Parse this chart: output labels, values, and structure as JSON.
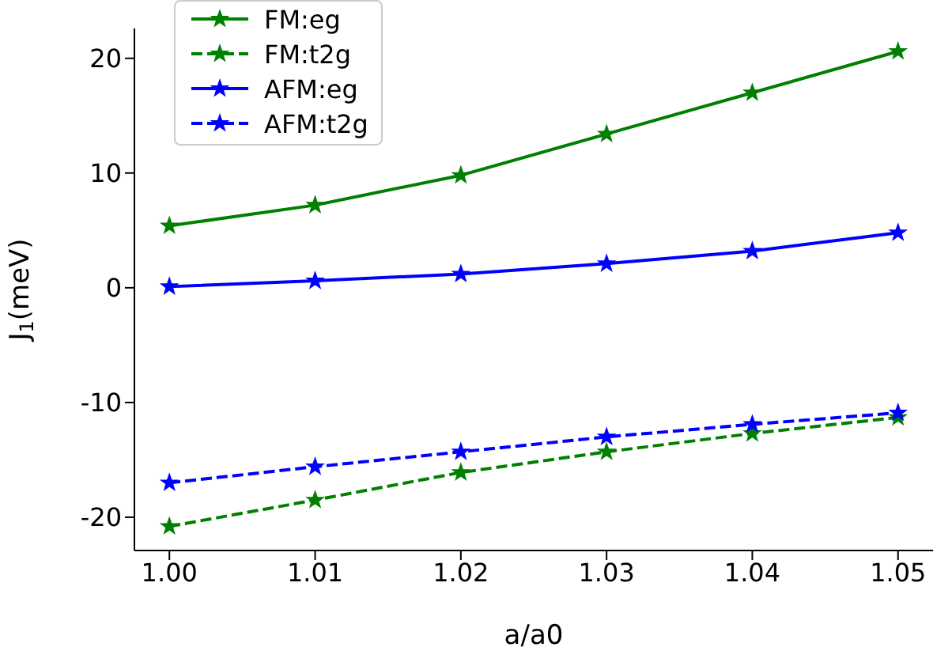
{
  "chart_data": {
    "type": "line",
    "xlabel": "a/a0",
    "ylabel": "J$_{1}$(meV)",
    "x": [
      1.0,
      1.01,
      1.02,
      1.03,
      1.04,
      1.05
    ],
    "series": [
      {
        "name": "FM:eg",
        "color": "#008000",
        "line_style": "solid",
        "values": [
          5.4,
          7.2,
          9.8,
          13.4,
          17.0,
          20.6
        ]
      },
      {
        "name": "FM:t2g",
        "color": "#008000",
        "line_style": "dashed",
        "values": [
          -20.8,
          -18.5,
          -16.1,
          -14.3,
          -12.7,
          -11.3
        ]
      },
      {
        "name": "AFM:eg",
        "color": "#0000ff",
        "line_style": "solid",
        "values": [
          0.1,
          0.6,
          1.2,
          2.1,
          3.2,
          4.8
        ]
      },
      {
        "name": "AFM:t2g",
        "color": "#0000ff",
        "line_style": "dashed",
        "values": [
          -17.0,
          -15.6,
          -14.3,
          -13.0,
          -11.9,
          -10.9
        ]
      }
    ],
    "xlim": [
      0.9976,
      1.0524
    ],
    "xticks": [
      {
        "value": 1.0,
        "label": "1.00"
      },
      {
        "value": 1.01,
        "label": "1.01"
      },
      {
        "value": 1.02,
        "label": "1.02"
      },
      {
        "value": 1.03,
        "label": "1.03"
      },
      {
        "value": 1.04,
        "label": "1.04"
      },
      {
        "value": 1.05,
        "label": "1.05"
      }
    ],
    "ylim": [
      -22.9,
      22.6
    ],
    "yticks": [
      -20,
      -10,
      0,
      10,
      20
    ],
    "marker": "star",
    "grid": false,
    "legend": "top left"
  }
}
